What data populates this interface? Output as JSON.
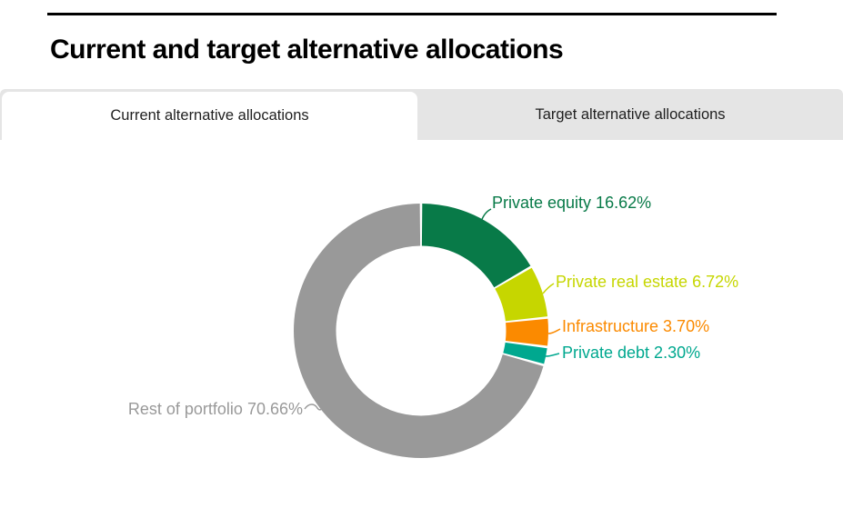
{
  "page": {
    "title": "Current and target alternative allocations"
  },
  "tabs": [
    {
      "label": "Current alternative allocations",
      "state": "active"
    },
    {
      "label": "Target alternative allocations",
      "state": "inactive"
    }
  ],
  "colors": {
    "tab_bar_background": "#e5e5e5",
    "active_tab_background": "#ffffff",
    "title_text": "#000000",
    "top_rule": "#000000"
  },
  "chart_data": {
    "type": "pie",
    "variant": "donut",
    "title": "Current alternative allocations",
    "start_angle_deg": 0,
    "direction": "clockwise",
    "legend_position": "callout-labels",
    "slices": [
      {
        "label": "Private equity",
        "value": 16.62,
        "display": "Private equity 16.62%",
        "color": "#087a48"
      },
      {
        "label": "Private real estate",
        "value": 6.72,
        "display": "Private real estate 6.72%",
        "color": "#c6d600"
      },
      {
        "label": "Infrastructure",
        "value": 3.7,
        "display": "Infrastructure 3.70%",
        "color": "#fb8a00"
      },
      {
        "label": "Private debt",
        "value": 2.3,
        "display": "Private debt 2.30%",
        "color": "#00a88f"
      },
      {
        "label": "Rest of portfolio",
        "value": 70.66,
        "display": "Rest of portfolio 70.66%",
        "color": "#999999"
      }
    ]
  }
}
